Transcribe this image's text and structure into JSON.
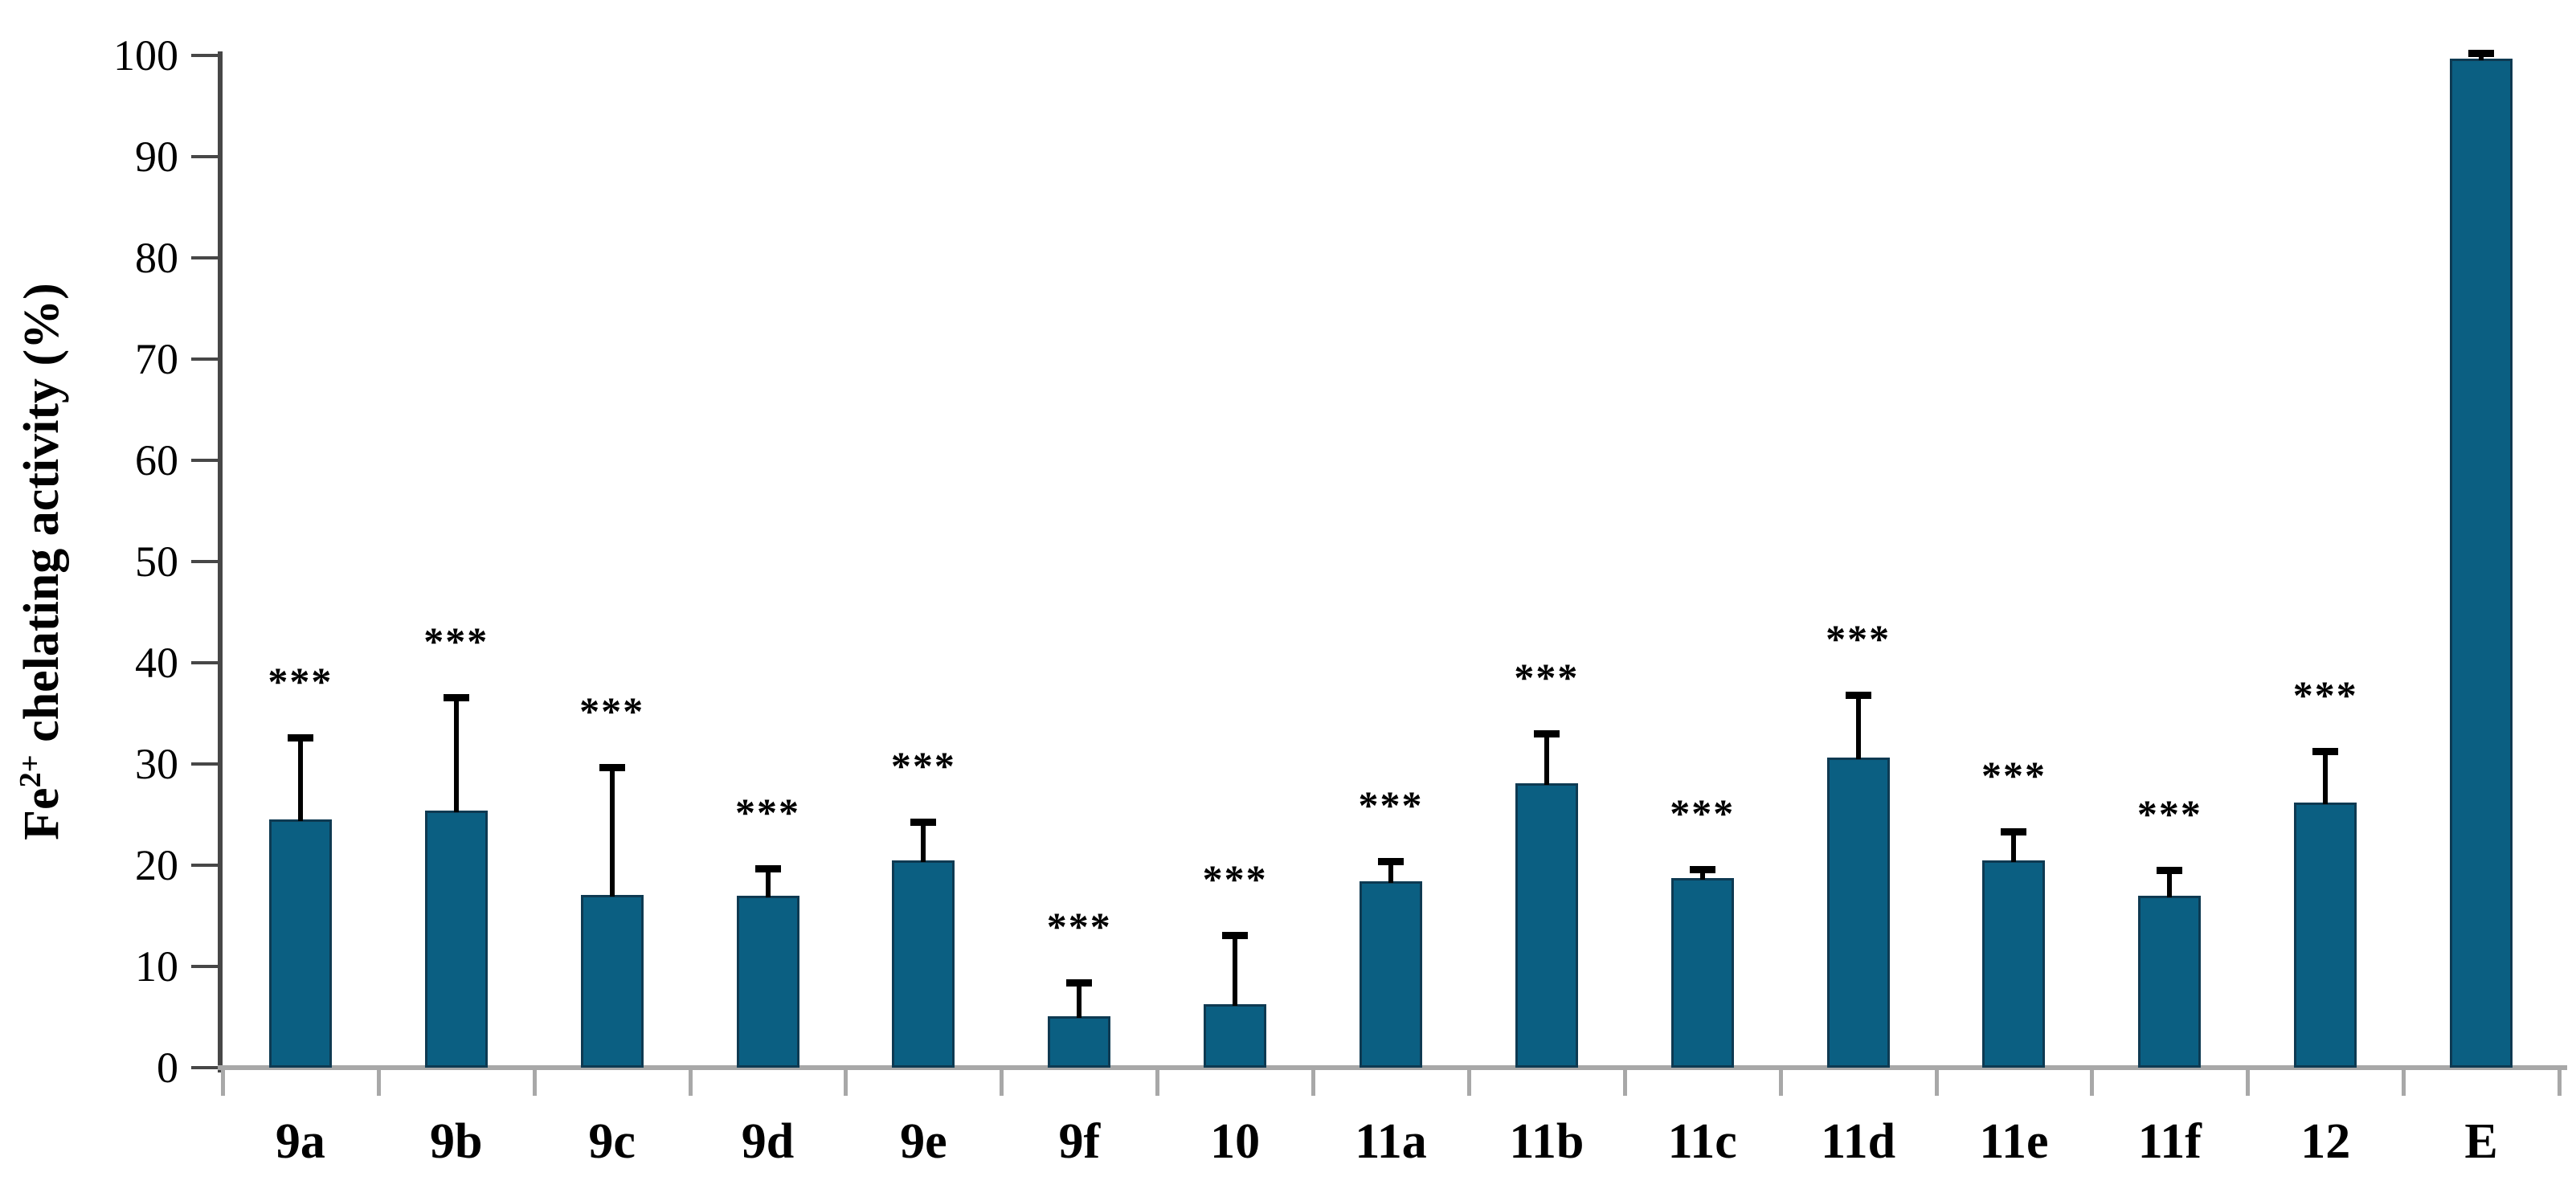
{
  "chart_data": {
    "type": "bar",
    "title": "",
    "categories": [
      "9a",
      "9b",
      "9c",
      "9d",
      "9e",
      "9f",
      "10",
      "11a",
      "11b",
      "11c",
      "11d",
      "11e",
      "11f",
      "12",
      "E"
    ],
    "values": [
      24.5,
      25.4,
      17.1,
      17.0,
      20.5,
      5.1,
      6.3,
      18.4,
      28.1,
      18.7,
      30.6,
      20.5,
      17.0,
      26.2,
      99.7
    ],
    "errors_upper": [
      8.1,
      11.2,
      12.6,
      2.7,
      3.8,
      3.3,
      6.8,
      2.0,
      4.9,
      0.9,
      6.2,
      2.8,
      2.5,
      5.1,
      0.5
    ],
    "significance": [
      "***",
      "***",
      "***",
      "***",
      "***",
      "***",
      "***",
      "***",
      "***",
      "***",
      "***",
      "***",
      "***",
      "***",
      ""
    ],
    "ylabel": {
      "before": "Fe",
      "sup": "2+",
      "after": " chelating activity (%)"
    },
    "xlabel": "",
    "ylim": [
      0,
      100
    ],
    "ytick_step": 10,
    "ytick_labels": [
      "0",
      "10",
      "20",
      "30",
      "40",
      "50",
      "60",
      "70",
      "80",
      "90",
      "100"
    ],
    "legend": null,
    "grid": "off",
    "bar_color": "#0b5f82",
    "bar_border_color": "#0e3a52",
    "error_bar_color": "#000000",
    "y_axis_color": "#474747",
    "x_baseline_color": "#a8a8a8",
    "significance_marker": "***"
  }
}
